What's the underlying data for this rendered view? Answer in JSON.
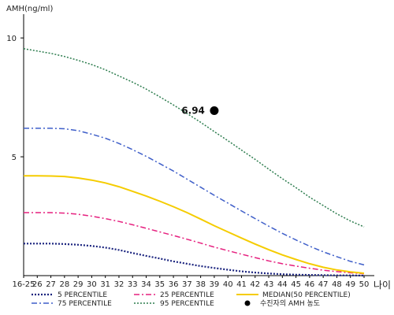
{
  "chart_data": {
    "type": "line",
    "ylabel": "AMH(ng/ml)",
    "xlabel": "나이",
    "ylim": [
      0,
      11
    ],
    "yticks": [
      5,
      10
    ],
    "x": [
      "16-25",
      "26",
      "27",
      "28",
      "29",
      "30",
      "31",
      "32",
      "33",
      "34",
      "35",
      "36",
      "37",
      "38",
      "39",
      "40",
      "41",
      "42",
      "43",
      "44",
      "45",
      "46",
      "47",
      "48",
      "49",
      "50"
    ],
    "series": [
      {
        "name": "5 PERCENTILE",
        "color": "#1a237e",
        "dash": "2,2",
        "width": 2.2,
        "values": [
          1.35,
          1.35,
          1.35,
          1.33,
          1.3,
          1.25,
          1.18,
          1.08,
          0.95,
          0.83,
          0.72,
          0.6,
          0.5,
          0.4,
          0.32,
          0.25,
          0.18,
          0.13,
          0.09,
          0.06,
          0.04,
          0.03,
          0.02,
          0.01,
          0.01,
          0.0
        ]
      },
      {
        "name": "25 PERCENTILE",
        "color": "#e6207f",
        "dash": "7,3,2,3",
        "width": 1.5,
        "values": [
          2.65,
          2.65,
          2.65,
          2.63,
          2.58,
          2.5,
          2.4,
          2.28,
          2.14,
          1.99,
          1.84,
          1.69,
          1.53,
          1.37,
          1.2,
          1.05,
          0.9,
          0.76,
          0.62,
          0.5,
          0.4,
          0.31,
          0.23,
          0.17,
          0.12,
          0.08
        ]
      },
      {
        "name": "MEDIAN(50 PERCENTILE)",
        "color": "#f5cc00",
        "dash": "",
        "width": 2,
        "values": [
          4.2,
          4.2,
          4.19,
          4.17,
          4.11,
          4.02,
          3.9,
          3.74,
          3.55,
          3.35,
          3.13,
          2.9,
          2.65,
          2.38,
          2.1,
          1.84,
          1.58,
          1.33,
          1.09,
          0.87,
          0.68,
          0.5,
          0.35,
          0.24,
          0.16,
          0.1
        ]
      },
      {
        "name": "75 PERCENTILE",
        "color": "#3f5fc9",
        "dash": "7,3,2,3",
        "width": 1.5,
        "values": [
          6.2,
          6.2,
          6.2,
          6.18,
          6.1,
          5.95,
          5.78,
          5.56,
          5.3,
          5.02,
          4.71,
          4.4,
          4.06,
          3.72,
          3.38,
          3.05,
          2.72,
          2.4,
          2.08,
          1.78,
          1.5,
          1.24,
          1.0,
          0.8,
          0.6,
          0.45
        ]
      },
      {
        "name": "95 PERCENTILE",
        "color": "#2e7d4f",
        "dash": "2,2",
        "width": 1.5,
        "values": [
          9.55,
          9.45,
          9.35,
          9.22,
          9.06,
          8.88,
          8.66,
          8.4,
          8.14,
          7.85,
          7.52,
          7.18,
          6.82,
          6.45,
          6.06,
          5.68,
          5.28,
          4.89,
          4.48,
          4.08,
          3.7,
          3.3,
          2.95,
          2.6,
          2.3,
          2.05
        ]
      }
    ],
    "point": {
      "x": "39",
      "y": 6.94,
      "label": "6.94",
      "legend": "수진자의 AMH 농도",
      "color": "#000000"
    },
    "legend_position": "bottom",
    "grid": false
  }
}
